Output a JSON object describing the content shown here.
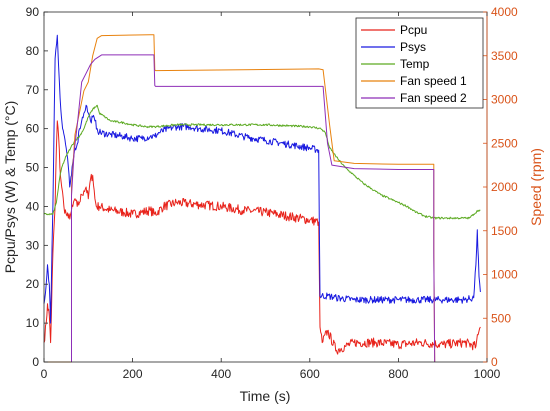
{
  "chart_data": {
    "type": "line",
    "title": "",
    "xlabel": "Time (s)",
    "ylabel_left": "Pcpu/Psys (W) & Temp (°C)",
    "ylabel_right": "Speed (rpm)",
    "xlim": [
      0,
      1000
    ],
    "ylim_left": [
      0,
      90
    ],
    "ylim_right": [
      0,
      4000
    ],
    "x_ticks": [
      "0",
      "200",
      "400",
      "600",
      "800",
      "1000"
    ],
    "y_ticks_left": [
      "0",
      "10",
      "20",
      "30",
      "40",
      "50",
      "60",
      "70",
      "80",
      "90"
    ],
    "y_ticks_right": [
      "0",
      "500",
      "1000",
      "1500",
      "2000",
      "2500",
      "3000",
      "3500",
      "4000"
    ],
    "grid": false,
    "legend_position": "top-right",
    "colors": {
      "axis_left": "#262626",
      "axis_right": "#d95319"
    },
    "series": [
      {
        "name": "Pcpu",
        "axis": "left",
        "color": "#e8231b",
        "noise": 1.2,
        "points": [
          [
            0,
            5
          ],
          [
            5,
            10
          ],
          [
            8,
            15
          ],
          [
            12,
            12
          ],
          [
            15,
            5
          ],
          [
            20,
            28
          ],
          [
            25,
            40
          ],
          [
            28,
            55
          ],
          [
            30,
            62
          ],
          [
            33,
            58
          ],
          [
            36,
            50
          ],
          [
            40,
            45
          ],
          [
            45,
            40
          ],
          [
            50,
            38
          ],
          [
            55,
            37
          ],
          [
            60,
            38
          ],
          [
            65,
            40
          ],
          [
            70,
            42
          ],
          [
            75,
            40
          ],
          [
            80,
            41
          ],
          [
            85,
            43
          ],
          [
            90,
            44
          ],
          [
            95,
            45
          ],
          [
            100,
            42
          ],
          [
            105,
            47
          ],
          [
            110,
            48
          ],
          [
            115,
            42
          ],
          [
            118,
            40
          ],
          [
            125,
            40
          ],
          [
            150,
            39
          ],
          [
            180,
            38.5
          ],
          [
            200,
            38
          ],
          [
            220,
            38.5
          ],
          [
            240,
            39
          ],
          [
            250,
            38
          ],
          [
            270,
            40
          ],
          [
            300,
            41
          ],
          [
            350,
            40.5
          ],
          [
            400,
            40
          ],
          [
            450,
            39
          ],
          [
            500,
            38.5
          ],
          [
            550,
            37.5
          ],
          [
            600,
            36.5
          ],
          [
            620,
            36
          ],
          [
            623,
            9
          ],
          [
            628,
            5
          ],
          [
            640,
            8
          ],
          [
            660,
            3
          ],
          [
            680,
            4
          ],
          [
            700,
            5
          ],
          [
            750,
            5
          ],
          [
            800,
            4.5
          ],
          [
            850,
            5
          ],
          [
            900,
            4.5
          ],
          [
            950,
            5
          ],
          [
            975,
            4
          ],
          [
            980,
            7
          ],
          [
            985,
            9
          ]
        ]
      },
      {
        "name": "Psys",
        "axis": "left",
        "color": "#1a1ae0",
        "noise": 0.9,
        "points": [
          [
            0,
            15
          ],
          [
            5,
            20
          ],
          [
            8,
            25
          ],
          [
            12,
            20
          ],
          [
            15,
            10
          ],
          [
            20,
            40
          ],
          [
            25,
            78
          ],
          [
            30,
            84
          ],
          [
            33,
            76
          ],
          [
            38,
            65
          ],
          [
            42,
            60
          ],
          [
            46,
            58
          ],
          [
            50,
            55
          ],
          [
            55,
            50
          ],
          [
            58,
            45
          ],
          [
            62,
            48
          ],
          [
            66,
            52
          ],
          [
            70,
            55
          ],
          [
            75,
            56
          ],
          [
            80,
            60
          ],
          [
            85,
            62
          ],
          [
            90,
            64
          ],
          [
            95,
            66
          ],
          [
            100,
            64
          ],
          [
            105,
            62
          ],
          [
            110,
            63
          ],
          [
            115,
            62
          ],
          [
            120,
            60
          ],
          [
            125,
            59
          ],
          [
            150,
            58.5
          ],
          [
            180,
            58
          ],
          [
            200,
            57.5
          ],
          [
            220,
            57.5
          ],
          [
            240,
            58
          ],
          [
            250,
            58
          ],
          [
            260,
            59
          ],
          [
            280,
            60
          ],
          [
            300,
            60.5
          ],
          [
            330,
            60.5
          ],
          [
            350,
            60
          ],
          [
            400,
            59.5
          ],
          [
            450,
            58
          ],
          [
            500,
            57
          ],
          [
            550,
            56
          ],
          [
            600,
            55
          ],
          [
            620,
            54.5
          ],
          [
            623,
            17
          ],
          [
            640,
            17
          ],
          [
            660,
            16.5
          ],
          [
            700,
            16
          ],
          [
            800,
            16
          ],
          [
            900,
            16
          ],
          [
            950,
            16
          ],
          [
            970,
            16.5
          ],
          [
            975,
            25
          ],
          [
            978,
            34
          ],
          [
            982,
            22
          ],
          [
            985,
            18
          ]
        ]
      },
      {
        "name": "Temp",
        "axis": "left",
        "color": "#5caa22",
        "noise": 0.25,
        "points": [
          [
            0,
            38
          ],
          [
            10,
            38
          ],
          [
            20,
            38
          ],
          [
            28,
            41
          ],
          [
            35,
            47
          ],
          [
            40,
            50
          ],
          [
            50,
            53
          ],
          [
            60,
            55
          ],
          [
            70,
            57
          ],
          [
            80,
            58
          ],
          [
            90,
            60
          ],
          [
            100,
            63
          ],
          [
            110,
            65
          ],
          [
            120,
            66
          ],
          [
            125,
            64
          ],
          [
            150,
            62
          ],
          [
            180,
            61.5
          ],
          [
            200,
            61
          ],
          [
            230,
            60.5
          ],
          [
            250,
            60.5
          ],
          [
            300,
            61
          ],
          [
            400,
            61
          ],
          [
            500,
            61
          ],
          [
            600,
            60.5
          ],
          [
            625,
            60
          ],
          [
            635,
            59
          ],
          [
            645,
            55
          ],
          [
            655,
            53.5
          ],
          [
            665,
            52
          ],
          [
            680,
            50
          ],
          [
            700,
            48
          ],
          [
            720,
            46
          ],
          [
            740,
            44.5
          ],
          [
            760,
            43
          ],
          [
            780,
            42
          ],
          [
            800,
            41
          ],
          [
            820,
            40
          ],
          [
            840,
            38.5
          ],
          [
            860,
            37.5
          ],
          [
            880,
            37
          ],
          [
            900,
            37
          ],
          [
            920,
            37
          ],
          [
            940,
            37
          ],
          [
            960,
            37
          ],
          [
            970,
            38
          ],
          [
            980,
            39
          ],
          [
            985,
            39
          ]
        ]
      },
      {
        "name": "Fan speed 1",
        "axis": "right",
        "color": "#e8820e",
        "noise": 0,
        "points": [
          [
            0,
            0
          ],
          [
            62,
            0
          ],
          [
            62,
            2000
          ],
          [
            70,
            2600
          ],
          [
            90,
            3100
          ],
          [
            100,
            3200
          ],
          [
            110,
            3500
          ],
          [
            120,
            3700
          ],
          [
            130,
            3730
          ],
          [
            240,
            3740
          ],
          [
            248,
            3740
          ],
          [
            250,
            3340
          ],
          [
            252,
            3330
          ],
          [
            620,
            3350
          ],
          [
            630,
            3340
          ],
          [
            645,
            2700
          ],
          [
            655,
            2300
          ],
          [
            700,
            2270
          ],
          [
            800,
            2260
          ],
          [
            880,
            2260
          ],
          [
            880,
            1300
          ],
          [
            882,
            0
          ]
        ]
      },
      {
        "name": "Fan speed 2",
        "axis": "right",
        "color": "#8e2fb8",
        "noise": 0,
        "points": [
          [
            62,
            0
          ],
          [
            62,
            1900
          ],
          [
            68,
            2400
          ],
          [
            75,
            2700
          ],
          [
            85,
            3200
          ],
          [
            95,
            3300
          ],
          [
            105,
            3400
          ],
          [
            115,
            3460
          ],
          [
            130,
            3510
          ],
          [
            240,
            3510
          ],
          [
            248,
            3510
          ],
          [
            250,
            3160
          ],
          [
            252,
            3150
          ],
          [
            620,
            3150
          ],
          [
            630,
            3150
          ],
          [
            640,
            2500
          ],
          [
            650,
            2250
          ],
          [
            700,
            2210
          ],
          [
            800,
            2200
          ],
          [
            880,
            2200
          ],
          [
            880,
            1200
          ],
          [
            882,
            0
          ]
        ]
      }
    ]
  }
}
